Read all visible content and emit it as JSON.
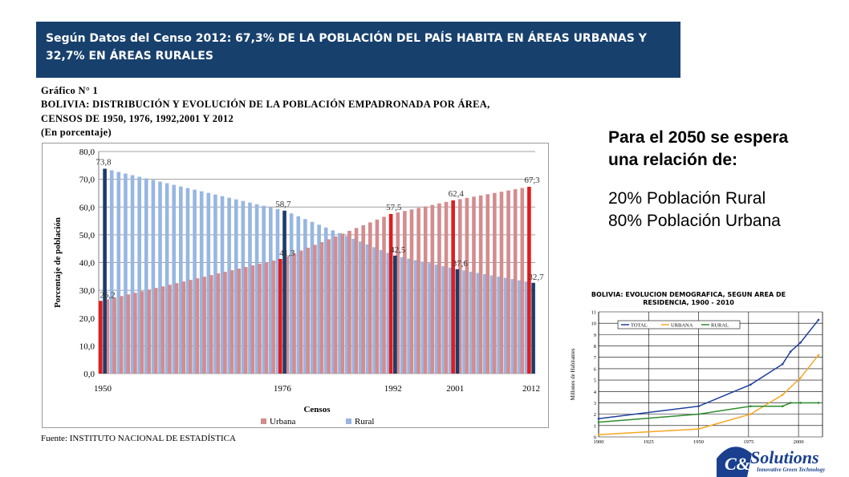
{
  "banner": {
    "text": "Según Datos del Censo 2012: 67,3% DE LA POBLACIÓN DEL PAÍS HABITA EN ÁREAS URBANAS Y 32,7% EN ÁREAS RURALES"
  },
  "main_chart_header": {
    "label": "Gráfico N° 1",
    "title_line1": "BOLIVIA: DISTRIBUCIÓN Y EVOLUCIÓN DE LA POBLACIÓN EMPADRONADA POR ÁREA,",
    "title_line2": "CENSOS DE 1950, 1976, 1992,2001 Y 2012",
    "units": "(En porcentaje)"
  },
  "source": "Fuente: INSTITUTO NACIONAL DE ESTADÍSTICA",
  "right_text": {
    "line1": "Para el 2050 se espera",
    "line2": "una relación de:",
    "line3": "20% Población Rural",
    "line4": "80% Población Urbana"
  },
  "small_chart_title": {
    "line1": "BOLIVIA:  EVOLUCION DEMOGRAFICA, SEGUN AREA DE",
    "line2": "RESIDENCIA, 1900 - 2010"
  },
  "logo": {
    "brand": "Solutions",
    "mark": "C&J",
    "tagline": "Innovative Green Technology"
  },
  "colors": {
    "banner": "#17406d",
    "urbana": "#d48c8e",
    "rural": "#97b6e2",
    "urbana_census": "#e31b1b",
    "rural_census": "#1d3c6b",
    "total": "#1f3f9c",
    "urbana_line": "#f5a623",
    "rural_line": "#2e8b2e"
  },
  "chart_data": [
    {
      "type": "bar",
      "ylabel": "Porcentaje de población",
      "xlabel": "Censos",
      "ylim": [
        0,
        80
      ],
      "yticks": [
        "0,0",
        "10,0",
        "20,0",
        "30,0",
        "40,0",
        "50,0",
        "60,0",
        "70,0",
        "80,0"
      ],
      "x_range": [
        1950,
        2012
      ],
      "xticks": [
        "1950",
        "1976",
        "1992",
        "2001",
        "2012"
      ],
      "grid": true,
      "legend_position": "bottom",
      "series": [
        {
          "name": "Urbana",
          "census_points": [
            [
              1950,
              26.2
            ],
            [
              1976,
              41.3
            ],
            [
              1992,
              57.5
            ],
            [
              2001,
              62.4
            ],
            [
              2012,
              67.3
            ]
          ]
        },
        {
          "name": "Rural",
          "census_points": [
            [
              1950,
              73.8
            ],
            [
              1976,
              58.7
            ],
            [
              1992,
              42.5
            ],
            [
              2001,
              37.6
            ],
            [
              2012,
              32.7
            ]
          ]
        }
      ],
      "data_labels": [
        "73,8",
        "26,2",
        "58,7",
        "41,3",
        "57,5",
        "42,5",
        "62,4",
        "37,6",
        "67,3",
        "32,7"
      ]
    },
    {
      "type": "line",
      "ylabel": "Millones de Habitantes",
      "xlim": [
        1900,
        2012
      ],
      "xticks": [
        "1900",
        "1925",
        "1950",
        "1975",
        "2000"
      ],
      "ylim": [
        0,
        11
      ],
      "yticks": [
        "0",
        "1",
        "2",
        "3",
        "4",
        "5",
        "6",
        "7",
        "8",
        "9",
        "10",
        "11"
      ],
      "legend_position": "top-left",
      "series": [
        {
          "name": "TOTAL",
          "points": [
            [
              1900,
              1.6
            ],
            [
              1950,
              2.7
            ],
            [
              1976,
              4.6
            ],
            [
              1992,
              6.4
            ],
            [
              1996,
              7.5
            ],
            [
              2001,
              8.3
            ],
            [
              2010,
              10.3
            ]
          ]
        },
        {
          "name": "URBANA",
          "points": [
            [
              1900,
              0.2
            ],
            [
              1950,
              0.7
            ],
            [
              1976,
              2.0
            ],
            [
              1992,
              3.7
            ],
            [
              2001,
              5.2
            ],
            [
              2010,
              7.2
            ]
          ]
        },
        {
          "name": "RURAL",
          "points": [
            [
              1900,
              1.3
            ],
            [
              1950,
              2.0
            ],
            [
              1976,
              2.7
            ],
            [
              1992,
              2.7
            ],
            [
              1996,
              3.0
            ],
            [
              2001,
              3.0
            ],
            [
              2010,
              3.0
            ]
          ]
        }
      ]
    }
  ]
}
